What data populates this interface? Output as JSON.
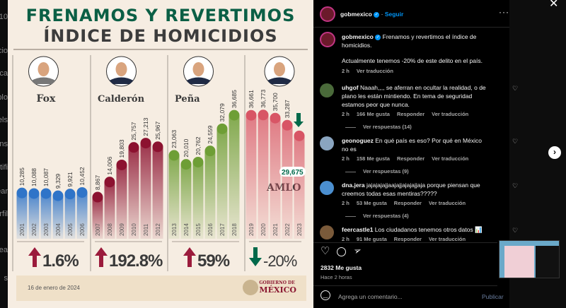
{
  "background_fragments": [
    "/10",
    "cio",
    "sca",
    "plo",
    "els",
    "ns",
    "tifi",
    "ear",
    "rfil",
    "rea",
    "s"
  ],
  "infographic": {
    "title_line1": "FRENAMOS Y REVERTIMOS",
    "title_line2": "ÍNDICE DE HOMICIDIOS",
    "date": "16 de enero de 2024",
    "logo_line1": "GOBIERNO DE",
    "logo_line2": "MÉXICO",
    "highlight_label": "29,675"
  },
  "chart_data": {
    "type": "bar",
    "title": "FRENAMOS Y REVERTIMOS ÍNDICE DE HOMICIDIOS",
    "groups": [
      {
        "name": "Fox",
        "change": "1.6%",
        "direction": "up",
        "color": "#2f74c8",
        "years": [
          "2001",
          "2002",
          "2003",
          "2004",
          "2005",
          "2006"
        ],
        "values": [
          10285,
          10088,
          10087,
          9329,
          9921,
          10452
        ],
        "labels": [
          "10,285",
          "10,088",
          "10,087",
          "9,329",
          "9,921",
          "10,452"
        ]
      },
      {
        "name": "Calderón",
        "change": "192.8%",
        "direction": "up",
        "color": "#8c1230",
        "years": [
          "2007",
          "2008",
          "2009",
          "2010",
          "2011",
          "2012"
        ],
        "values": [
          8867,
          14006,
          19803,
          25757,
          27213,
          25967
        ],
        "labels": [
          "8,867",
          "14,006",
          "19,803",
          "25,757",
          "27,213",
          "25,967"
        ]
      },
      {
        "name": "Peña",
        "change": "59%",
        "direction": "up",
        "color": "#6e9e35",
        "years": [
          "2013",
          "2014",
          "2015",
          "2016",
          "2017",
          "2018"
        ],
        "values": [
          23063,
          20010,
          20762,
          24559,
          32079,
          36685
        ],
        "labels": [
          "23,063",
          "20,010",
          "20,762",
          "24,559",
          "32,079",
          "36,685"
        ]
      },
      {
        "name": "AMLO",
        "change": "-20%",
        "direction": "down",
        "color": "#d85565",
        "years": [
          "2019",
          "2020",
          "2021",
          "2022",
          "2023"
        ],
        "values": [
          36661,
          36773,
          35700,
          33287,
          29675
        ],
        "labels": [
          "36,661",
          "36,773",
          "35,700",
          "33,287",
          ""
        ]
      }
    ],
    "arrow_colors": {
      "up": "#9b1b3c",
      "down": "#00694a"
    }
  },
  "post": {
    "username": "gobmexico",
    "follow": "Seguir",
    "caption_line1": "Frenamos y revertimos el índice de homicidios.",
    "caption_line2": "Actualmente tenemos -20% de este delito en el país.",
    "caption_time": "2 h",
    "translate": "Ver traducción",
    "comments": [
      {
        "user": "uhgof",
        "text": "Naaah,,,, se aferran en ocultar la realidad, o de plano les están mintiendo. En tema de seguridad estamos peor que nunca.",
        "time": "2 h",
        "likes": "166 Me gusta",
        "reply": "Responder",
        "translate": "Ver traducción",
        "replies": "Ver respuestas (14)"
      },
      {
        "user": "geonoguez",
        "text": "En qué país es eso? Por qué en México no es",
        "time": "2 h",
        "likes": "158 Me gusta",
        "reply": "Responder",
        "translate": "Ver traducción",
        "replies": "Ver respuestas (9)"
      },
      {
        "user": "dna.jera",
        "text": "jajajajajjaajajjajajajjaja porque piensan que creemos todas esas mentiras?????",
        "time": "2 h",
        "likes": "53 Me gusta",
        "reply": "Responder",
        "translate": "Ver traducción",
        "replies": "Ver respuestas (4)"
      },
      {
        "user": "feercastle1",
        "text": "Los ciudadanos tenemos otros datos 📊",
        "time": "2 h",
        "likes": "91 Me gusta",
        "reply": "Responder",
        "translate": "Ver traducción"
      }
    ],
    "likes": "2832 Me gusta",
    "posted": "Hace 2 horas",
    "comment_placeholder": "Agrega un comentario...",
    "publish": "Publicar"
  }
}
